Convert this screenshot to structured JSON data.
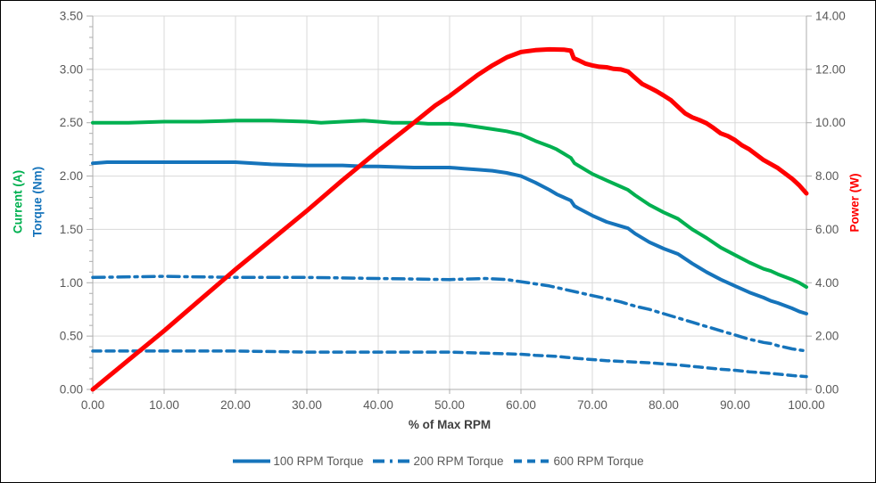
{
  "styles": {
    "background": "#FFFFFF",
    "frame_border_color": "#000000",
    "grid_color": "#D9D9D9",
    "axis_line_color": "#ACACAC",
    "tick_label_color": "#595959",
    "x_title_color": "#404040",
    "legend_text_color": "#595959",
    "torque_blue": "#1674BB",
    "current_green": "#00B050",
    "power_red": "#FF0000"
  },
  "chart_data": {
    "type": "line",
    "title": "",
    "grid": true,
    "x_axis": {
      "label": "% of Max RPM",
      "min": 0,
      "max": 100,
      "major_step": 10,
      "decimals": 2
    },
    "y_axis_left": {
      "titles": [
        {
          "text": "Current (A)",
          "color": "#00B050"
        },
        {
          "text": "Torque (Nm)",
          "color": "#1674BB"
        }
      ],
      "min": 0,
      "max": 3.5,
      "major_step": 0.5,
      "minor_step": 0.1,
      "decimals": 2
    },
    "y_axis_right": {
      "title": {
        "text": "Power (W)",
        "color": "#FF0000"
      },
      "min": 0,
      "max": 14,
      "major_step": 2,
      "decimals": 2
    },
    "legend": {
      "position": "bottom"
    },
    "series": [
      {
        "name": "Current",
        "axis": "left",
        "color": "#00B050",
        "dash": "solid",
        "width": 4,
        "in_legend": false,
        "points": [
          [
            0,
            2.5
          ],
          [
            5,
            2.5
          ],
          [
            10,
            2.51
          ],
          [
            15,
            2.51
          ],
          [
            20,
            2.52
          ],
          [
            25,
            2.52
          ],
          [
            30,
            2.51
          ],
          [
            32,
            2.5
          ],
          [
            35,
            2.51
          ],
          [
            38,
            2.52
          ],
          [
            40,
            2.51
          ],
          [
            42,
            2.5
          ],
          [
            45,
            2.5
          ],
          [
            47,
            2.49
          ],
          [
            50,
            2.49
          ],
          [
            52,
            2.48
          ],
          [
            54,
            2.46
          ],
          [
            56,
            2.44
          ],
          [
            58,
            2.42
          ],
          [
            60,
            2.39
          ],
          [
            62,
            2.33
          ],
          [
            64,
            2.28
          ],
          [
            65,
            2.25
          ],
          [
            66,
            2.21
          ],
          [
            67,
            2.17
          ],
          [
            67.5,
            2.12
          ],
          [
            68,
            2.1
          ],
          [
            70,
            2.02
          ],
          [
            72,
            1.96
          ],
          [
            74,
            1.9
          ],
          [
            75,
            1.87
          ],
          [
            76,
            1.82
          ],
          [
            78,
            1.73
          ],
          [
            80,
            1.66
          ],
          [
            82,
            1.6
          ],
          [
            84,
            1.5
          ],
          [
            85,
            1.46
          ],
          [
            86,
            1.42
          ],
          [
            88,
            1.33
          ],
          [
            90,
            1.26
          ],
          [
            92,
            1.19
          ],
          [
            94,
            1.13
          ],
          [
            95,
            1.11
          ],
          [
            96,
            1.08
          ],
          [
            98,
            1.03
          ],
          [
            99,
            1.0
          ],
          [
            100,
            0.96
          ]
        ]
      },
      {
        "name": "100 RPM Torque",
        "axis": "left",
        "color": "#1674BB",
        "dash": "solid",
        "width": 4,
        "in_legend": true,
        "points": [
          [
            0,
            2.12
          ],
          [
            2,
            2.13
          ],
          [
            5,
            2.13
          ],
          [
            10,
            2.13
          ],
          [
            15,
            2.13
          ],
          [
            20,
            2.13
          ],
          [
            25,
            2.11
          ],
          [
            30,
            2.1
          ],
          [
            35,
            2.1
          ],
          [
            38,
            2.09
          ],
          [
            40,
            2.09
          ],
          [
            45,
            2.08
          ],
          [
            50,
            2.08
          ],
          [
            52,
            2.07
          ],
          [
            54,
            2.06
          ],
          [
            56,
            2.05
          ],
          [
            58,
            2.03
          ],
          [
            60,
            2.0
          ],
          [
            62,
            1.94
          ],
          [
            64,
            1.87
          ],
          [
            65,
            1.83
          ],
          [
            66,
            1.8
          ],
          [
            67,
            1.77
          ],
          [
            67.5,
            1.72
          ],
          [
            68,
            1.7
          ],
          [
            70,
            1.63
          ],
          [
            72,
            1.57
          ],
          [
            74,
            1.53
          ],
          [
            75,
            1.51
          ],
          [
            76,
            1.46
          ],
          [
            78,
            1.38
          ],
          [
            80,
            1.32
          ],
          [
            82,
            1.27
          ],
          [
            84,
            1.18
          ],
          [
            85,
            1.14
          ],
          [
            86,
            1.1
          ],
          [
            88,
            1.03
          ],
          [
            90,
            0.97
          ],
          [
            92,
            0.91
          ],
          [
            94,
            0.86
          ],
          [
            95,
            0.83
          ],
          [
            96,
            0.81
          ],
          [
            98,
            0.76
          ],
          [
            99,
            0.73
          ],
          [
            100,
            0.71
          ]
        ]
      },
      {
        "name": "200 RPM Torque",
        "axis": "left",
        "color": "#1674BB",
        "dash": "dash_dot",
        "width": 3.5,
        "in_legend": true,
        "points": [
          [
            0,
            1.05
          ],
          [
            10,
            1.06
          ],
          [
            20,
            1.05
          ],
          [
            30,
            1.05
          ],
          [
            40,
            1.04
          ],
          [
            50,
            1.03
          ],
          [
            55,
            1.04
          ],
          [
            58,
            1.03
          ],
          [
            60,
            1.01
          ],
          [
            62,
            0.99
          ],
          [
            64,
            0.97
          ],
          [
            66,
            0.94
          ],
          [
            68,
            0.91
          ],
          [
            70,
            0.88
          ],
          [
            72,
            0.85
          ],
          [
            74,
            0.82
          ],
          [
            75,
            0.8
          ],
          [
            76,
            0.78
          ],
          [
            78,
            0.75
          ],
          [
            80,
            0.71
          ],
          [
            82,
            0.67
          ],
          [
            84,
            0.63
          ],
          [
            85,
            0.61
          ],
          [
            86,
            0.59
          ],
          [
            88,
            0.55
          ],
          [
            90,
            0.51
          ],
          [
            92,
            0.47
          ],
          [
            94,
            0.44
          ],
          [
            95,
            0.43
          ],
          [
            96,
            0.41
          ],
          [
            98,
            0.38
          ],
          [
            100,
            0.36
          ]
        ]
      },
      {
        "name": "600 RPM Torque",
        "axis": "left",
        "color": "#1674BB",
        "dash": "dash",
        "width": 3.5,
        "in_legend": true,
        "points": [
          [
            0,
            0.36
          ],
          [
            10,
            0.36
          ],
          [
            20,
            0.36
          ],
          [
            30,
            0.35
          ],
          [
            40,
            0.35
          ],
          [
            50,
            0.35
          ],
          [
            55,
            0.34
          ],
          [
            60,
            0.33
          ],
          [
            62,
            0.32
          ],
          [
            65,
            0.31
          ],
          [
            68,
            0.29
          ],
          [
            70,
            0.28
          ],
          [
            72,
            0.27
          ],
          [
            75,
            0.26
          ],
          [
            78,
            0.25
          ],
          [
            80,
            0.24
          ],
          [
            82,
            0.23
          ],
          [
            85,
            0.21
          ],
          [
            88,
            0.19
          ],
          [
            90,
            0.18
          ],
          [
            92,
            0.165
          ],
          [
            95,
            0.15
          ],
          [
            98,
            0.13
          ],
          [
            100,
            0.12
          ]
        ]
      },
      {
        "name": "Power",
        "axis": "right",
        "color": "#FF0000",
        "dash": "solid",
        "width": 5,
        "in_legend": false,
        "points": [
          [
            0,
            0
          ],
          [
            5,
            1.1
          ],
          [
            10,
            2.2
          ],
          [
            15,
            3.35
          ],
          [
            20,
            4.5
          ],
          [
            25,
            5.6
          ],
          [
            30,
            6.7
          ],
          [
            35,
            7.85
          ],
          [
            40,
            8.95
          ],
          [
            45,
            10.0
          ],
          [
            48,
            10.65
          ],
          [
            50,
            11.0
          ],
          [
            52,
            11.4
          ],
          [
            54,
            11.8
          ],
          [
            56,
            12.15
          ],
          [
            58,
            12.45
          ],
          [
            60,
            12.65
          ],
          [
            62,
            12.72
          ],
          [
            64,
            12.75
          ],
          [
            66,
            12.74
          ],
          [
            67,
            12.7
          ],
          [
            67.4,
            12.42
          ],
          [
            68,
            12.35
          ],
          [
            69,
            12.22
          ],
          [
            70,
            12.15
          ],
          [
            71,
            12.1
          ],
          [
            72,
            12.08
          ],
          [
            73,
            12.02
          ],
          [
            74,
            12.0
          ],
          [
            75,
            11.92
          ],
          [
            76,
            11.68
          ],
          [
            77,
            11.45
          ],
          [
            78,
            11.32
          ],
          [
            79,
            11.18
          ],
          [
            80,
            11.02
          ],
          [
            81,
            10.85
          ],
          [
            82,
            10.6
          ],
          [
            83,
            10.35
          ],
          [
            84,
            10.2
          ],
          [
            85,
            10.1
          ],
          [
            86,
            9.98
          ],
          [
            87,
            9.8
          ],
          [
            88,
            9.6
          ],
          [
            89,
            9.5
          ],
          [
            90,
            9.35
          ],
          [
            91,
            9.15
          ],
          [
            92,
            9.0
          ],
          [
            93,
            8.8
          ],
          [
            94,
            8.6
          ],
          [
            95,
            8.45
          ],
          [
            96,
            8.3
          ],
          [
            97,
            8.1
          ],
          [
            98,
            7.9
          ],
          [
            99,
            7.65
          ],
          [
            100,
            7.35
          ]
        ]
      }
    ]
  }
}
